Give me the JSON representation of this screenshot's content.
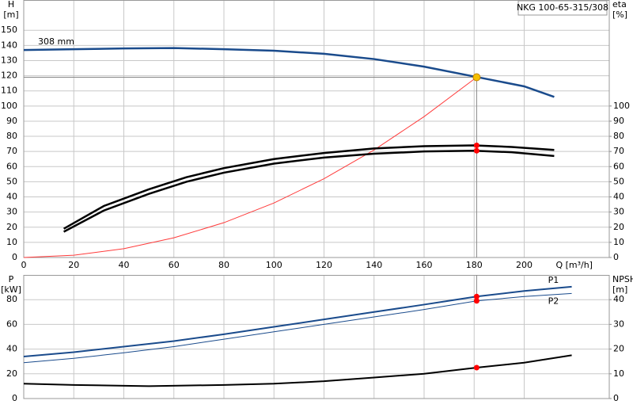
{
  "chart_data": [
    {
      "type": "line",
      "title": "NKG 100-65-315/308",
      "y_label": "H",
      "y_unit": "[m]",
      "y2_label": "eta",
      "y2_unit": "[%]",
      "x_label": "Q [m³/h]",
      "xlim": [
        0,
        234
      ],
      "xticks": [
        0,
        20,
        40,
        60,
        80,
        100,
        120,
        140,
        160,
        180,
        200
      ],
      "ylim": [
        0,
        170
      ],
      "yticks": [
        0,
        10,
        20,
        30,
        40,
        50,
        60,
        70,
        80,
        90,
        100,
        110,
        120,
        130,
        140,
        150
      ],
      "y2lim": [
        0,
        170
      ],
      "y2ticks": [
        0,
        10,
        20,
        30,
        40,
        50,
        60,
        70,
        80,
        90,
        100
      ],
      "grid": true,
      "series": [
        {
          "name": "308 mm",
          "color": "#1a4b8c",
          "x": [
            0,
            20,
            40,
            60,
            80,
            100,
            120,
            140,
            160,
            180,
            200,
            212
          ],
          "values": [
            137,
            137.5,
            138,
            138.3,
            137.5,
            136.5,
            134.5,
            131,
            126,
            119.5,
            113,
            106
          ]
        },
        {
          "color": "#ff3b3b",
          "x": [
            0,
            20,
            40,
            60,
            80,
            100,
            120,
            140,
            160,
            181
          ],
          "values": [
            0,
            1.5,
            5.8,
            13,
            23,
            36,
            52,
            71,
            93,
            119
          ]
        },
        {
          "color": "#000000",
          "axis": "y2",
          "x": [
            16,
            32,
            50,
            65,
            80,
            100,
            120,
            140,
            160,
            180,
            195,
            212
          ],
          "values": [
            19,
            34,
            45,
            53,
            59,
            65,
            69,
            72,
            73.5,
            74,
            73,
            71
          ]
        },
        {
          "color": "#000000",
          "axis": "y2",
          "x": [
            16,
            32,
            50,
            65,
            80,
            100,
            120,
            140,
            160,
            180,
            195,
            212
          ],
          "values": [
            17,
            31,
            42,
            50,
            56,
            62,
            66,
            68.5,
            70,
            70.5,
            69.5,
            67
          ]
        }
      ],
      "points": [
        {
          "x": 181,
          "y": 119,
          "color": "#f5c000"
        },
        {
          "x": 181,
          "y": 74,
          "axis": "y2",
          "color": "#ff0000"
        },
        {
          "x": 181,
          "y": 70.5,
          "axis": "y2",
          "color": "#ff0000"
        }
      ]
    },
    {
      "type": "line",
      "y_label": "P",
      "y_unit": "[kW]",
      "y2_label": "NPSH",
      "y2_unit": "[m]",
      "xlim": [
        0,
        234
      ],
      "xticks": [
        0,
        20,
        40,
        60,
        80,
        100,
        120,
        140,
        160,
        180,
        200
      ],
      "ylim": [
        0,
        100
      ],
      "yticks": [
        0,
        20,
        40,
        60,
        80
      ],
      "y2lim": [
        0,
        50
      ],
      "y2ticks": [
        0,
        10,
        20,
        30,
        40
      ],
      "grid": true,
      "series": [
        {
          "name": "P1",
          "color": "#1a4b8c",
          "x": [
            0,
            20,
            40,
            60,
            80,
            100,
            120,
            140,
            160,
            181,
            200,
            219
          ],
          "values": [
            34,
            37.5,
            42,
            46.5,
            52,
            58,
            64,
            70,
            76,
            82.5,
            87,
            90.5
          ]
        },
        {
          "name": "P2",
          "color": "#1a4b8c",
          "x": [
            0,
            20,
            40,
            60,
            80,
            100,
            120,
            140,
            160,
            181,
            200,
            219
          ],
          "values": [
            29,
            32.5,
            37,
            42,
            48,
            54,
            60,
            66,
            72,
            79,
            82.5,
            85
          ]
        },
        {
          "color": "#000000",
          "axis": "y2",
          "x": [
            0,
            20,
            50,
            80,
            100,
            120,
            140,
            160,
            181,
            200,
            219
          ],
          "values": [
            6,
            5.5,
            5,
            5.5,
            6,
            7,
            8.5,
            10,
            12.5,
            14.5,
            17.5
          ]
        }
      ],
      "points": [
        {
          "x": 181,
          "y": 82.5,
          "color": "#ff0000"
        },
        {
          "x": 181,
          "y": 79,
          "color": "#ff0000"
        },
        {
          "x": 181,
          "y": 12.5,
          "axis": "y2",
          "color": "#ff0000"
        }
      ]
    }
  ]
}
